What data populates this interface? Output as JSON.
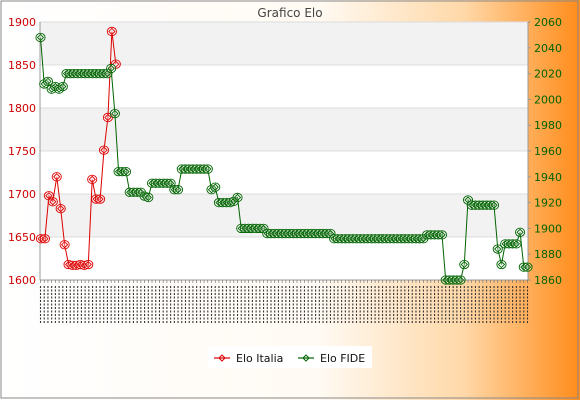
{
  "chart_data": {
    "type": "line",
    "title": "Grafico Elo",
    "left_axis": {
      "ylim": [
        1600,
        1900
      ],
      "ticks": [
        1600,
        1650,
        1700,
        1750,
        1800,
        1850,
        1900
      ],
      "color": "#cc0000"
    },
    "right_axis": {
      "ylim": [
        1860,
        2060
      ],
      "ticks": [
        1860,
        1880,
        1900,
        1920,
        1940,
        1960,
        1980,
        2000,
        2020,
        2040,
        2060
      ],
      "color": "#006400"
    },
    "grid": true,
    "legend_position": "bottom-center",
    "series": [
      {
        "name": "Elo Italia",
        "axis": "left",
        "color": "#dd0000",
        "values": [
          1648,
          1648,
          1698,
          1691,
          1720,
          1683,
          1641,
          1618,
          1617,
          1617,
          1618,
          1617,
          1618,
          1717,
          1694,
          1694,
          1751,
          1789,
          1889,
          1851
        ]
      },
      {
        "name": "Elo FIDE",
        "axis": "right",
        "color": "#006400",
        "values": [
          2048,
          2012,
          2014,
          2008,
          2010,
          2008,
          2010,
          2020,
          2020,
          2020,
          2020,
          2020,
          2020,
          2020,
          2020,
          2020,
          2020,
          2020,
          2020,
          2024,
          1989,
          1944,
          1944,
          1944,
          1928,
          1928,
          1928,
          1928,
          1925,
          1924,
          1935,
          1935,
          1935,
          1935,
          1935,
          1935,
          1930,
          1930,
          1946,
          1946,
          1946,
          1946,
          1946,
          1946,
          1946,
          1946,
          1930,
          1932,
          1920,
          1920,
          1920,
          1920,
          1921,
          1924,
          1900,
          1900,
          1900,
          1900,
          1900,
          1900,
          1900,
          1896,
          1896,
          1896,
          1896,
          1896,
          1896,
          1896,
          1896,
          1896,
          1896,
          1896,
          1896,
          1896,
          1896,
          1896,
          1896,
          1896,
          1896,
          1892,
          1892,
          1892,
          1892,
          1892,
          1892,
          1892,
          1892,
          1892,
          1892,
          1892,
          1892,
          1892,
          1892,
          1892,
          1892,
          1892,
          1892,
          1892,
          1892,
          1892,
          1892,
          1892,
          1892,
          1892,
          1895,
          1895,
          1895,
          1895,
          1895,
          1860,
          1860,
          1860,
          1860,
          1860,
          1872,
          1922,
          1918,
          1918,
          1918,
          1918,
          1918,
          1918,
          1918,
          1884,
          1872,
          1888,
          1888,
          1888,
          1888,
          1897,
          1870,
          1870
        ]
      }
    ]
  }
}
